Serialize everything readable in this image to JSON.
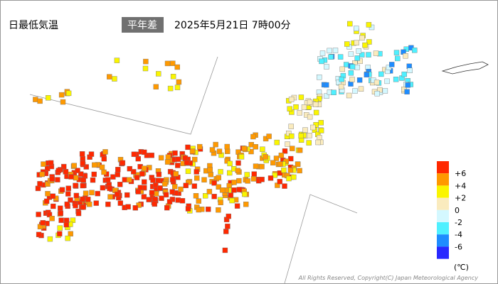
{
  "header": {
    "title": "日最低気温",
    "badge": "平年差",
    "datetime": "2025年5月21日 7時00分"
  },
  "legend": {
    "colors": [
      "#ff2800",
      "#ff9900",
      "#faf500",
      "#faebbe",
      "#d4f8ff",
      "#4ff0ff",
      "#1e8cff",
      "#2828ff"
    ],
    "labels": [
      "+6",
      "+4",
      "+2",
      "0",
      "-2",
      "-4",
      "-6"
    ],
    "unit": "(℃)"
  },
  "footer": {
    "copyright": "All Rights Reserved, Copyright(C) Japan Meteorological Agency"
  }
}
